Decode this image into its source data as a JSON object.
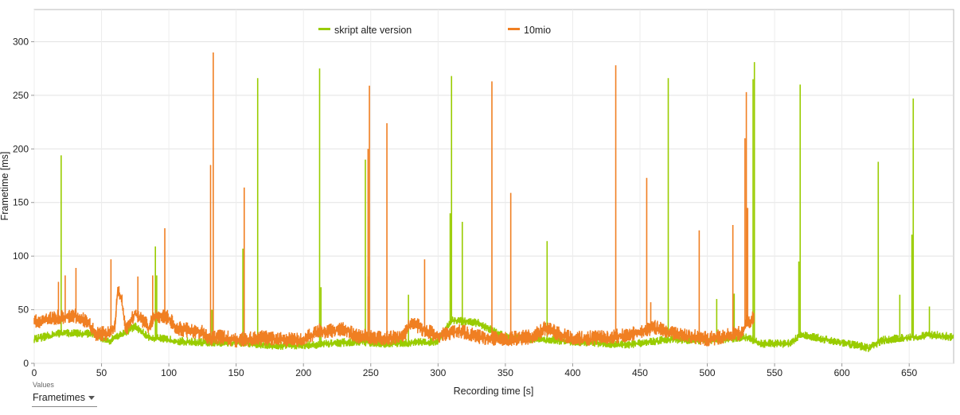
{
  "chart_data": {
    "type": "line",
    "xlabel": "Recording time [s]",
    "ylabel": "Frametime [ms]",
    "xlim": [
      0,
      683
    ],
    "ylim": [
      0,
      330
    ],
    "x_ticks": [
      0,
      50,
      100,
      150,
      200,
      250,
      300,
      350,
      400,
      450,
      500,
      550,
      600,
      650
    ],
    "y_ticks": [
      0,
      50,
      100,
      150,
      200,
      250,
      300
    ],
    "grid": true,
    "legend_position": "top-center",
    "series": [
      {
        "name": "skript alte version",
        "color": "#99cc00",
        "extent": [
          0,
          683
        ],
        "baseline": [
          [
            0,
            22
          ],
          [
            20,
            28
          ],
          [
            45,
            27
          ],
          [
            55,
            20
          ],
          [
            75,
            34
          ],
          [
            85,
            24
          ],
          [
            110,
            20
          ],
          [
            130,
            19
          ],
          [
            150,
            19
          ],
          [
            180,
            16
          ],
          [
            210,
            17
          ],
          [
            240,
            20
          ],
          [
            260,
            18
          ],
          [
            300,
            20
          ],
          [
            310,
            40
          ],
          [
            330,
            37
          ],
          [
            350,
            24
          ],
          [
            400,
            20
          ],
          [
            440,
            17
          ],
          [
            470,
            22
          ],
          [
            500,
            21
          ],
          [
            530,
            24
          ],
          [
            540,
            18
          ],
          [
            560,
            18
          ],
          [
            570,
            26
          ],
          [
            600,
            19
          ],
          [
            620,
            14
          ],
          [
            630,
            21
          ],
          [
            650,
            24
          ],
          [
            670,
            26
          ],
          [
            683,
            24
          ]
        ],
        "spikes": [
          [
            20,
            194
          ],
          [
            90,
            109
          ],
          [
            91,
            82
          ],
          [
            132,
            50
          ],
          [
            155,
            107
          ],
          [
            166,
            266
          ],
          [
            212,
            275
          ],
          [
            213,
            71
          ],
          [
            246,
            190
          ],
          [
            248,
            81
          ],
          [
            278,
            64
          ],
          [
            309,
            140
          ],
          [
            310,
            268
          ],
          [
            318,
            132
          ],
          [
            381,
            114
          ],
          [
            471,
            266
          ],
          [
            507,
            60
          ],
          [
            520,
            65
          ],
          [
            534,
            265
          ],
          [
            535,
            281
          ],
          [
            568,
            95
          ],
          [
            569,
            260
          ],
          [
            627,
            188
          ],
          [
            643,
            64
          ],
          [
            652,
            120
          ],
          [
            653,
            247
          ],
          [
            665,
            53
          ]
        ]
      },
      {
        "name": "10mio",
        "color": "#f07f22",
        "extent": [
          0,
          535
        ],
        "baseline": [
          [
            0,
            38
          ],
          [
            10,
            41
          ],
          [
            20,
            43
          ],
          [
            30,
            44
          ],
          [
            40,
            38
          ],
          [
            45,
            27
          ],
          [
            55,
            27
          ],
          [
            60,
            35
          ],
          [
            62,
            70
          ],
          [
            65,
            60
          ],
          [
            68,
            30
          ],
          [
            75,
            47
          ],
          [
            85,
            33
          ],
          [
            90,
            44
          ],
          [
            100,
            42
          ],
          [
            105,
            32
          ],
          [
            115,
            30
          ],
          [
            125,
            28
          ],
          [
            130,
            22
          ],
          [
            140,
            24
          ],
          [
            150,
            21
          ],
          [
            170,
            23
          ],
          [
            180,
            22
          ],
          [
            200,
            21
          ],
          [
            210,
            29
          ],
          [
            230,
            31
          ],
          [
            240,
            25
          ],
          [
            260,
            22
          ],
          [
            275,
            26
          ],
          [
            280,
            38
          ],
          [
            290,
            30
          ],
          [
            300,
            25
          ],
          [
            315,
            30
          ],
          [
            330,
            24
          ],
          [
            350,
            22
          ],
          [
            370,
            24
          ],
          [
            380,
            32
          ],
          [
            400,
            22
          ],
          [
            430,
            24
          ],
          [
            450,
            28
          ],
          [
            460,
            33
          ],
          [
            480,
            26
          ],
          [
            500,
            22
          ],
          [
            510,
            24
          ],
          [
            525,
            28
          ],
          [
            530,
            38
          ],
          [
            535,
            42
          ]
        ],
        "spikes": [
          [
            18,
            76
          ],
          [
            23,
            82
          ],
          [
            31,
            89
          ],
          [
            57,
            97
          ],
          [
            77,
            81
          ],
          [
            88,
            82
          ],
          [
            97,
            126
          ],
          [
            131,
            185
          ],
          [
            133,
            290
          ],
          [
            156,
            164
          ],
          [
            248,
            200
          ],
          [
            249,
            259
          ],
          [
            262,
            224
          ],
          [
            290,
            97
          ],
          [
            340,
            263
          ],
          [
            354,
            159
          ],
          [
            432,
            278
          ],
          [
            455,
            173
          ],
          [
            458,
            57
          ],
          [
            494,
            124
          ],
          [
            519,
            129
          ],
          [
            528,
            210
          ],
          [
            529,
            253
          ],
          [
            530,
            145
          ]
        ]
      }
    ]
  },
  "controls": {
    "selector_caption": "Values",
    "selector_value": "Frametimes"
  }
}
